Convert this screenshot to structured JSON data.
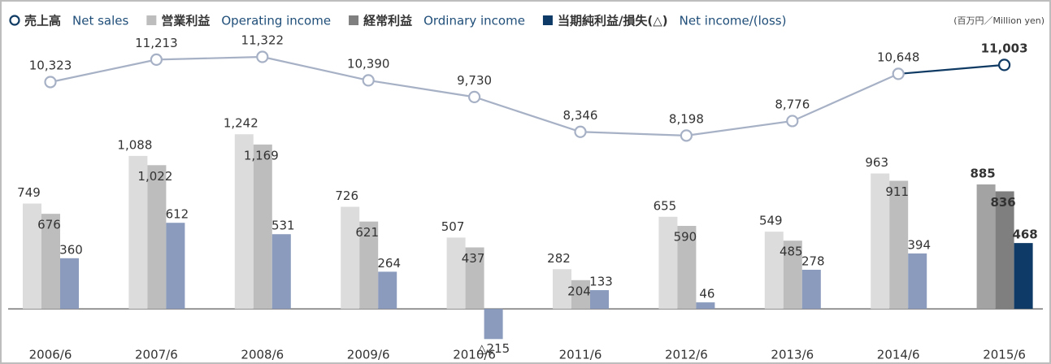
{
  "chart_data": {
    "type": "bar",
    "unit_note": "(百万円／Million yen)",
    "categories": [
      "2006/6",
      "2007/6",
      "2008/6",
      "2009/6",
      "2010/6",
      "2011/6",
      "2012/6",
      "2013/6",
      "2014/6",
      "2015/6"
    ],
    "highlight_category": "2015/6",
    "ylim": [
      -300,
      1500
    ],
    "y2lim": [
      4000,
      12000
    ],
    "series": [
      {
        "name": "売上高",
        "name_en": "Net sales",
        "type": "line",
        "axis": "y2",
        "color": "#a7b1c6",
        "highlight_color": "#0f3a63",
        "values": [
          10323,
          11213,
          11322,
          10390,
          9730,
          8346,
          8198,
          8776,
          10648,
          11003
        ],
        "value_labels": [
          "10,323",
          "11,213",
          "11,322",
          "10,390",
          "9,730",
          "8,346",
          "8,198",
          "8,776",
          "10,648",
          "11,003"
        ]
      },
      {
        "name": "営業利益",
        "name_en": "Operating income",
        "type": "bar",
        "color": "#dcdcdc",
        "highlight_color": "#a3a3a3",
        "legend_color": "#bdbdbd",
        "values": [
          749,
          1088,
          1242,
          726,
          507,
          282,
          655,
          549,
          963,
          885
        ],
        "value_labels": [
          "749",
          "1,088",
          "1,242",
          "726",
          "507",
          "282",
          "655",
          "549",
          "963",
          "885"
        ]
      },
      {
        "name": "経常利益",
        "name_en": "Ordinary income",
        "type": "bar",
        "color": "#bdbdbd",
        "highlight_color": "#7f7f7f",
        "legend_color": "#7f7f7f",
        "values": [
          676,
          1022,
          1169,
          621,
          437,
          204,
          590,
          485,
          911,
          836
        ],
        "value_labels": [
          "676",
          "1,022",
          "1,169",
          "621",
          "437",
          "204",
          "590",
          "485",
          "911",
          "836"
        ]
      },
      {
        "name": "当期純利益/損失(△)",
        "name_en": "Net income/(loss)",
        "type": "bar",
        "color": "#8a9bbd",
        "highlight_color": "#0d3a66",
        "legend_color": "#0d3a66",
        "values": [
          360,
          612,
          531,
          264,
          -215,
          133,
          46,
          278,
          394,
          468
        ],
        "value_labels": [
          "360",
          "612",
          "531",
          "264",
          "△215",
          "133",
          "46",
          "278",
          "394",
          "468"
        ]
      }
    ]
  }
}
